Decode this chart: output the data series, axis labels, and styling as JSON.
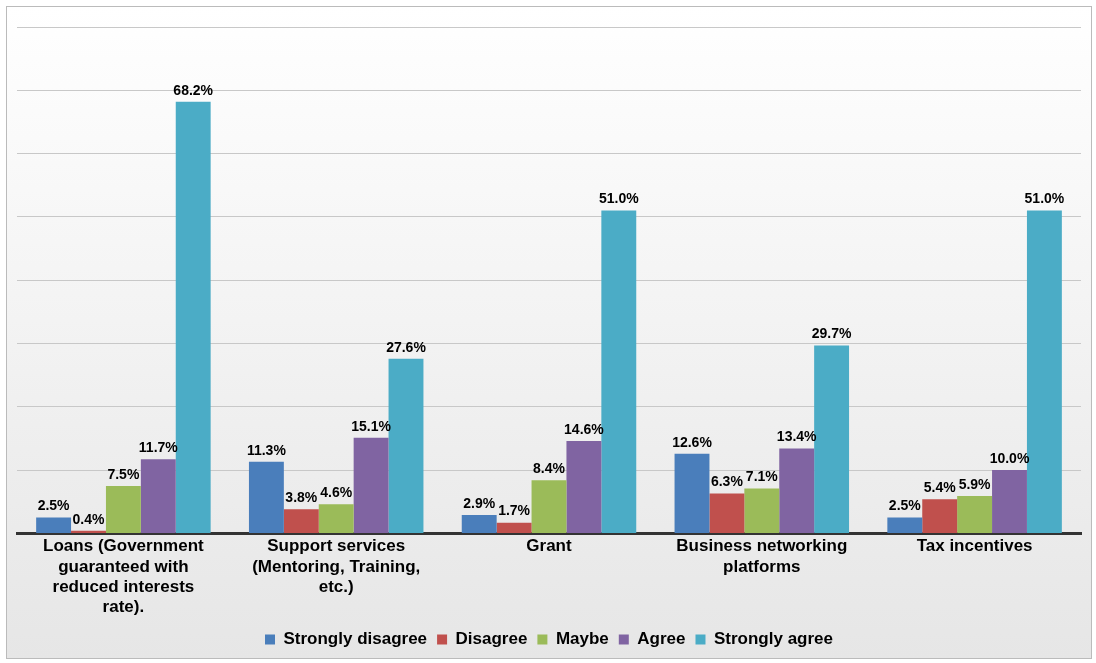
{
  "chart_data": {
    "type": "bar",
    "categories": [
      "Loans (Government guaranteed with reduced interests rate).",
      "Support services (Mentoring, Training, etc.)",
      "Grant",
      "Business networking platforms",
      "Tax incentives"
    ],
    "series": [
      {
        "name": "Strongly disagree",
        "color": "#4a7ebb",
        "values": [
          2.5,
          11.3,
          2.9,
          12.6,
          2.5
        ],
        "value_labels": [
          "2.5%",
          "11.3%",
          "2.9%",
          "12.6%",
          "2.5%"
        ]
      },
      {
        "name": "Disagree",
        "color": "#c0504d",
        "values": [
          0.4,
          3.8,
          1.7,
          6.3,
          5.4
        ],
        "value_labels": [
          "0.4%",
          "3.8%",
          "1.7%",
          "6.3%",
          "5.4%"
        ]
      },
      {
        "name": "Maybe",
        "color": "#9bbb59",
        "values": [
          7.5,
          4.6,
          8.4,
          7.1,
          5.9
        ],
        "value_labels": [
          "7.5%",
          "4.6%",
          "8.4%",
          "7.1%",
          "5.9%"
        ]
      },
      {
        "name": "Agree",
        "color": "#8064a2",
        "values": [
          11.7,
          15.1,
          14.6,
          13.4,
          10.0
        ],
        "value_labels": [
          "11.7%",
          "15.1%",
          "14.6%",
          "13.4%",
          "10.0%"
        ]
      },
      {
        "name": "Strongly agree",
        "color": "#4bacc6",
        "values": [
          68.2,
          27.6,
          51.0,
          29.7,
          51.0
        ],
        "value_labels": [
          "68.2%",
          "27.6%",
          "51.0%",
          "29.7%",
          "51.0%"
        ]
      }
    ],
    "ylim": [
      0,
      80
    ],
    "yticks": [
      0,
      10,
      20,
      30,
      40,
      50,
      60,
      70,
      80
    ],
    "tick_labels": "x",
    "grid": "y",
    "legend": "bottom"
  }
}
